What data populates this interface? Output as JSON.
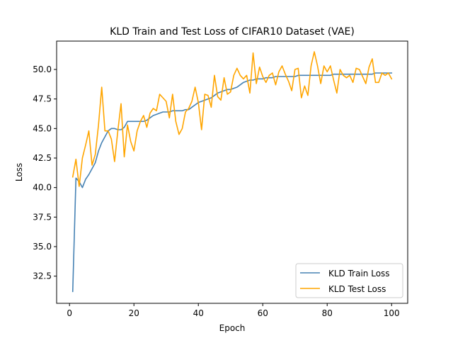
{
  "chart_data": {
    "type": "line",
    "title": "KLD Train and Test Loss of CIFAR10 Dataset (VAE)",
    "xlabel": "Epoch",
    "ylabel": "Loss",
    "xlim": [
      -4,
      105
    ],
    "ylim": [
      30.2,
      52.4
    ],
    "xticks": [
      0,
      20,
      40,
      60,
      80,
      100
    ],
    "yticks": [
      32.5,
      35.0,
      37.5,
      40.0,
      42.5,
      45.0,
      47.5,
      50.0
    ],
    "xtick_labels": [
      "0",
      "20",
      "40",
      "60",
      "80",
      "100"
    ],
    "ytick_labels": [
      "32.5",
      "35.0",
      "37.5",
      "40.0",
      "42.5",
      "45.0",
      "47.5",
      "50.0"
    ],
    "grid": false,
    "legend_position": "lower-right",
    "series": [
      {
        "name": "KLD Train Loss",
        "color": "#4682b4",
        "x": [
          1,
          2,
          3,
          4,
          5,
          6,
          7,
          8,
          9,
          10,
          11,
          12,
          13,
          14,
          15,
          16,
          17,
          18,
          19,
          20,
          21,
          22,
          23,
          24,
          25,
          26,
          27,
          28,
          29,
          30,
          31,
          32,
          33,
          34,
          35,
          36,
          37,
          38,
          39,
          40,
          41,
          42,
          43,
          44,
          45,
          46,
          47,
          48,
          49,
          50,
          51,
          52,
          53,
          54,
          55,
          56,
          57,
          58,
          59,
          60,
          61,
          62,
          63,
          64,
          65,
          66,
          67,
          68,
          69,
          70,
          71,
          72,
          73,
          74,
          75,
          76,
          77,
          78,
          79,
          80,
          81,
          82,
          83,
          84,
          85,
          86,
          87,
          88,
          89,
          90,
          91,
          92,
          93,
          94,
          95,
          96,
          97,
          98,
          99,
          100
        ],
        "values": [
          31.2,
          40.8,
          40.5,
          40.0,
          40.7,
          41.1,
          41.6,
          42.1,
          43.1,
          43.8,
          44.3,
          44.8,
          45.0,
          45.0,
          44.9,
          44.9,
          45.1,
          45.6,
          45.6,
          45.6,
          45.6,
          45.6,
          45.6,
          45.7,
          45.9,
          46.1,
          46.2,
          46.3,
          46.4,
          46.4,
          46.4,
          46.5,
          46.5,
          46.5,
          46.5,
          46.6,
          46.6,
          46.8,
          47.0,
          47.2,
          47.3,
          47.4,
          47.5,
          47.6,
          47.8,
          48.0,
          48.1,
          48.2,
          48.3,
          48.3,
          48.4,
          48.5,
          48.7,
          48.9,
          49.0,
          49.1,
          49.1,
          49.2,
          49.2,
          49.2,
          49.3,
          49.3,
          49.3,
          49.4,
          49.4,
          49.4,
          49.4,
          49.4,
          49.4,
          49.4,
          49.5,
          49.5,
          49.5,
          49.5,
          49.5,
          49.5,
          49.5,
          49.5,
          49.5,
          49.5,
          49.5,
          49.6,
          49.6,
          49.6,
          49.6,
          49.6,
          49.6,
          49.6,
          49.6,
          49.6,
          49.6,
          49.6,
          49.6,
          49.6,
          49.7,
          49.7,
          49.7,
          49.7,
          49.7,
          49.7
        ]
      },
      {
        "name": "KLD Test Loss",
        "color": "#ffa500",
        "x": [
          1,
          2,
          3,
          4,
          5,
          6,
          7,
          8,
          9,
          10,
          11,
          12,
          13,
          14,
          15,
          16,
          17,
          18,
          19,
          20,
          21,
          22,
          23,
          24,
          25,
          26,
          27,
          28,
          29,
          30,
          31,
          32,
          33,
          34,
          35,
          36,
          37,
          38,
          39,
          40,
          41,
          42,
          43,
          44,
          45,
          46,
          47,
          48,
          49,
          50,
          51,
          52,
          53,
          54,
          55,
          56,
          57,
          58,
          59,
          60,
          61,
          62,
          63,
          64,
          65,
          66,
          67,
          68,
          69,
          70,
          71,
          72,
          73,
          74,
          75,
          76,
          77,
          78,
          79,
          80,
          81,
          82,
          83,
          84,
          85,
          86,
          87,
          88,
          89,
          90,
          91,
          92,
          93,
          94,
          95,
          96,
          97,
          98,
          99,
          100
        ],
        "values": [
          40.9,
          42.4,
          40.1,
          42.5,
          43.6,
          44.8,
          41.9,
          42.8,
          45.3,
          48.5,
          44.8,
          44.8,
          44.1,
          42.2,
          44.8,
          47.1,
          42.6,
          45.3,
          43.9,
          43.1,
          44.8,
          45.6,
          46.1,
          45.1,
          46.3,
          46.7,
          46.5,
          47.9,
          47.6,
          47.3,
          45.9,
          47.9,
          45.6,
          44.5,
          45.0,
          46.4,
          46.7,
          47.3,
          48.5,
          47.2,
          44.9,
          47.9,
          47.8,
          46.8,
          49.5,
          47.7,
          47.4,
          49.3,
          47.9,
          48.1,
          49.5,
          50.1,
          49.5,
          49.2,
          49.5,
          48.0,
          51.4,
          48.8,
          50.2,
          49.4,
          48.9,
          49.5,
          49.7,
          48.7,
          49.8,
          50.3,
          49.6,
          49.0,
          48.2,
          50.0,
          50.1,
          47.6,
          48.6,
          47.8,
          50.3,
          51.5,
          50.3,
          48.8,
          50.3,
          49.8,
          50.3,
          49.1,
          48.0,
          50.0,
          49.5,
          49.3,
          49.5,
          48.9,
          50.1,
          50.0,
          49.4,
          48.8,
          50.2,
          50.9,
          48.9,
          48.9,
          49.7,
          49.5,
          49.7,
          49.2
        ]
      }
    ]
  }
}
